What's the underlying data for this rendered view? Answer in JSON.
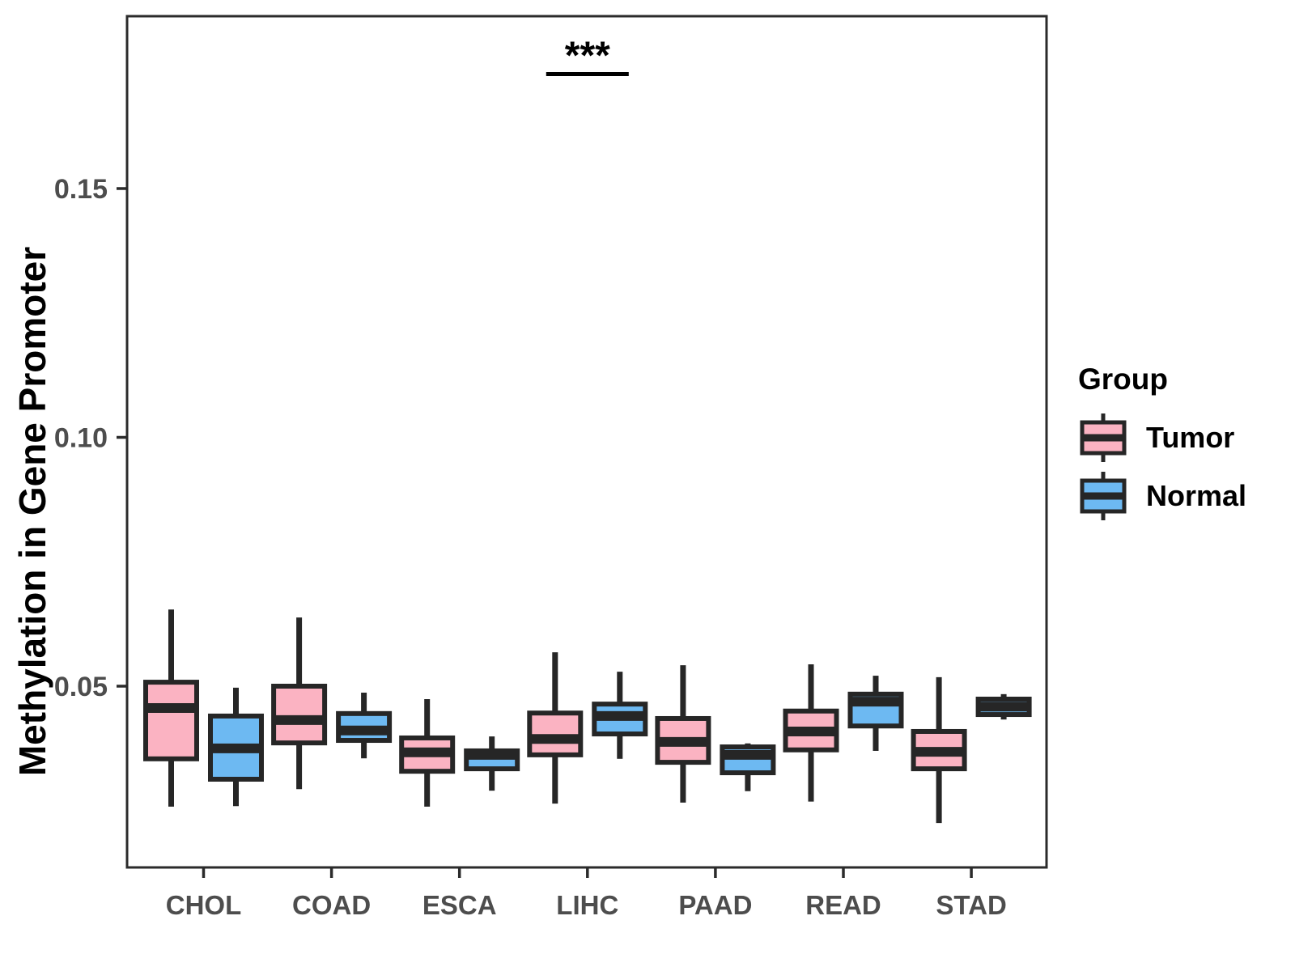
{
  "chart_data": {
    "type": "boxplot",
    "title": "",
    "xlabel": "",
    "ylabel": "Methylation in Gene Promoter",
    "categories": [
      "CHOL",
      "COAD",
      "ESCA",
      "LIHC",
      "PAAD",
      "READ",
      "STAD"
    ],
    "groups": [
      {
        "name": "Tumor",
        "color": "#FBB3C2"
      },
      {
        "name": "Normal",
        "color": "#6DB9F2"
      }
    ],
    "y_ticks": {
      "values": [
        0.05,
        0.1,
        0.15
      ],
      "labels": [
        "0.05",
        "0.10",
        "0.15"
      ]
    },
    "ylim": [
      0.014,
      0.185
    ],
    "grid": "off",
    "legend_position": "right",
    "series": [
      {
        "name": "Tumor",
        "boxes": [
          {
            "category": "CHOL",
            "whisker_low": 0.0258,
            "q1": 0.0354,
            "median": 0.0456,
            "q3": 0.0508,
            "whisker_high": 0.0654
          },
          {
            "category": "COAD",
            "whisker_low": 0.0293,
            "q1": 0.0386,
            "median": 0.0432,
            "q3": 0.05,
            "whisker_high": 0.0638
          },
          {
            "category": "ESCA",
            "whisker_low": 0.0258,
            "q1": 0.0329,
            "median": 0.0367,
            "q3": 0.0396,
            "whisker_high": 0.0474
          },
          {
            "category": "LIHC",
            "whisker_low": 0.0264,
            "q1": 0.0362,
            "median": 0.0394,
            "q3": 0.0446,
            "whisker_high": 0.0568
          },
          {
            "category": "PAAD",
            "whisker_low": 0.0266,
            "q1": 0.0347,
            "median": 0.0388,
            "q3": 0.0435,
            "whisker_high": 0.0542
          },
          {
            "category": "READ",
            "whisker_low": 0.0268,
            "q1": 0.0372,
            "median": 0.0409,
            "q3": 0.045,
            "whisker_high": 0.0544
          },
          {
            "category": "STAD",
            "whisker_low": 0.0225,
            "q1": 0.0334,
            "median": 0.0368,
            "q3": 0.0409,
            "whisker_high": 0.0518
          }
        ]
      },
      {
        "name": "Normal",
        "boxes": [
          {
            "category": "CHOL",
            "whisker_low": 0.0259,
            "q1": 0.0313,
            "median": 0.0375,
            "q3": 0.044,
            "whisker_high": 0.0497
          },
          {
            "category": "COAD",
            "whisker_low": 0.0355,
            "q1": 0.0391,
            "median": 0.0411,
            "q3": 0.0445,
            "whisker_high": 0.0487
          },
          {
            "category": "ESCA",
            "whisker_low": 0.029,
            "q1": 0.0334,
            "median": 0.0362,
            "q3": 0.037,
            "whisker_high": 0.0399
          },
          {
            "category": "LIHC",
            "whisker_low": 0.0354,
            "q1": 0.0404,
            "median": 0.044,
            "q3": 0.0464,
            "whisker_high": 0.0529
          },
          {
            "category": "PAAD",
            "whisker_low": 0.0289,
            "q1": 0.0326,
            "median": 0.0362,
            "q3": 0.0378,
            "whisker_high": 0.0385
          },
          {
            "category": "READ",
            "whisker_low": 0.037,
            "q1": 0.042,
            "median": 0.0469,
            "q3": 0.0484,
            "whisker_high": 0.0521
          },
          {
            "category": "STAD",
            "whisker_low": 0.0433,
            "q1": 0.0443,
            "median": 0.0459,
            "q3": 0.0474,
            "whisker_high": 0.0484
          }
        ]
      }
    ],
    "annotation": {
      "label": "***",
      "category": "LIHC",
      "y_value": 0.173
    },
    "legend": {
      "title": "Group",
      "entries": [
        "Tumor",
        "Normal"
      ]
    },
    "colors": {
      "tumor_fill": "#FBB3C2",
      "normal_fill": "#6DB9F2",
      "box_stroke": "#262626",
      "panel_border": "#2B2B2B",
      "axis_text": "#4D4D4D",
      "title_text": "#000000",
      "background": "#FFFFFF"
    }
  }
}
